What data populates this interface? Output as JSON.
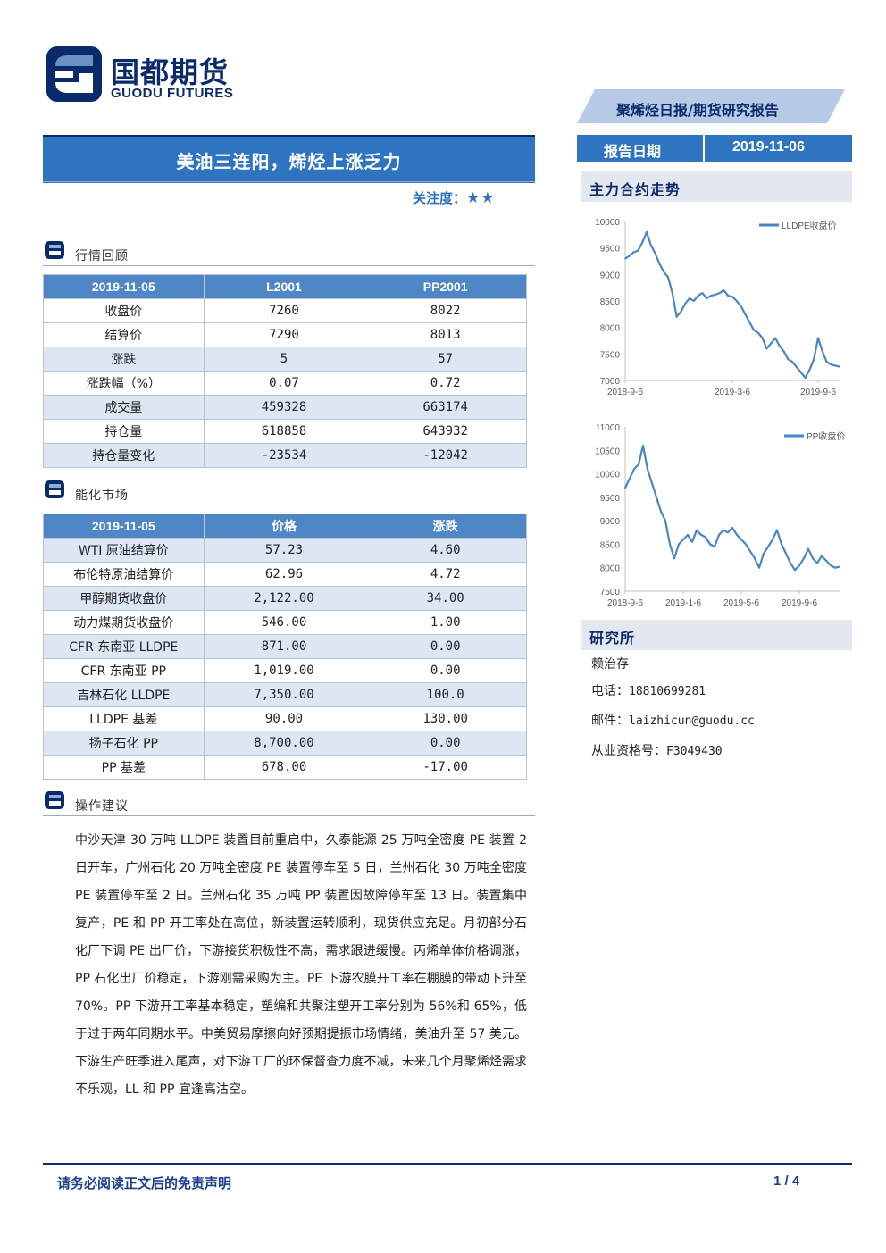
{
  "brand": {
    "name_cn": "国都期货",
    "name_en": "GUODU FUTURES"
  },
  "report_type": "聚烯烃日报/期货研究报告",
  "title": "美油三连阳，烯烃上涨乏力",
  "attention": {
    "label": "关注度：",
    "stars": "★★"
  },
  "sections": {
    "market_review": "行情回顾",
    "energy_market": "能化市场",
    "operation": "操作建议"
  },
  "market_table": {
    "headers": [
      "2019-11-05",
      "L2001",
      "PP2001"
    ],
    "rows": [
      [
        "收盘价",
        "7260",
        "8022"
      ],
      [
        "结算价",
        "7290",
        "8013"
      ],
      [
        "涨跌",
        "5",
        "57"
      ],
      [
        "涨跌幅（%）",
        "0.07",
        "0.72"
      ],
      [
        "成交量",
        "459328",
        "663174"
      ],
      [
        "持仓量",
        "618858",
        "643932"
      ],
      [
        "持仓量变化",
        "-23534",
        "-12042"
      ]
    ]
  },
  "energy_table": {
    "headers": [
      "2019-11-05",
      "价格",
      "涨跌"
    ],
    "rows": [
      [
        "WTI 原油结算价",
        "57.23",
        "4.60"
      ],
      [
        "布伦特原油结算价",
        "62.96",
        "4.72"
      ],
      [
        "甲醇期货收盘价",
        "2,122.00",
        "34.00"
      ],
      [
        "动力煤期货收盘价",
        "546.00",
        "1.00"
      ],
      [
        "CFR 东南亚 LLDPE",
        "871.00",
        "0.00"
      ],
      [
        "CFR 东南亚 PP",
        "1,019.00",
        "0.00"
      ],
      [
        "吉林石化 LLDPE",
        "7,350.00",
        "100.0"
      ],
      [
        "LLDPE 基差",
        "90.00",
        "130.00"
      ],
      [
        "扬子石化 PP",
        "8,700.00",
        "0.00"
      ],
      [
        "PP 基差",
        "678.00",
        "-17.00"
      ]
    ]
  },
  "advice": "中沙天津 30 万吨 LLDPE 装置目前重启中，久泰能源 25 万吨全密度 PE 装置 2 日开车，广州石化 20 万吨全密度 PE 装置停车至 5 日，兰州石化 30 万吨全密度 PE 装置停车至 2 日。兰州石化 35 万吨 PP 装置因故障停车至 13 日。装置集中复产，PE 和 PP 开工率处在高位，新装置运转顺利，现货供应充足。月初部分石化厂下调 PE 出厂价，下游接货积极性不高，需求跟进缓慢。丙烯单体价格调涨，PP 石化出厂价稳定，下游刚需采购为主。PE 下游农膜开工率在棚膜的带动下升至 70%。PP 下游开工率基本稳定，塑编和共聚注塑开工率分别为 56%和 65%，低于过于两年同期水平。中美贸易摩擦向好预期提振市场情绪，美油升至 57 美元。下游生产旺季进入尾声，对下游工厂的环保督查力度不减，未来几个月聚烯烃需求不乐观，LL 和 PP 宜逢高沽空。",
  "report_date": {
    "label": "报告日期",
    "value": "2019-11-06"
  },
  "main_contract_title": "主力合约走势",
  "chart_data": [
    {
      "type": "line",
      "series": [
        {
          "name": "LLDPE收盘价",
          "color": "#4a86c5",
          "values": [
            9300,
            9350,
            9420,
            9450,
            9600,
            9800,
            9550,
            9400,
            9200,
            9050,
            8950,
            8650,
            8200,
            8300,
            8450,
            8550,
            8500,
            8600,
            8650,
            8550,
            8600,
            8620,
            8650,
            8700,
            8600,
            8580,
            8500,
            8400,
            8250,
            8100,
            7950,
            7900,
            7800,
            7600,
            7700,
            7800,
            7650,
            7550,
            7400,
            7350,
            7250,
            7150,
            7050,
            7200,
            7400,
            7800,
            7550,
            7350,
            7300,
            7280,
            7260
          ]
        }
      ],
      "x_ticks": [
        "2018-9-6",
        "2019-3-6",
        "2019-9-6"
      ],
      "x_tick_index": [
        0,
        25,
        45
      ],
      "y_ticks": [
        7000,
        7500,
        8000,
        8500,
        9000,
        9500,
        10000
      ],
      "ylim": [
        7000,
        10000
      ],
      "legend": "top-right"
    },
    {
      "type": "line",
      "series": [
        {
          "name": "PP收盘价",
          "color": "#4a86c5",
          "values": [
            9700,
            9900,
            10100,
            10200,
            10600,
            10100,
            9800,
            9500,
            9200,
            9000,
            8500,
            8200,
            8500,
            8600,
            8700,
            8550,
            8800,
            8700,
            8650,
            8500,
            8450,
            8700,
            8800,
            8750,
            8850,
            8700,
            8600,
            8500,
            8350,
            8200,
            8000,
            8300,
            8450,
            8600,
            8800,
            8500,
            8300,
            8100,
            7950,
            8050,
            8200,
            8400,
            8200,
            8100,
            8250,
            8150,
            8050,
            8000,
            8022
          ]
        }
      ],
      "x_ticks": [
        "2018-9-6",
        "2019-1-6",
        "2019-5-6",
        "2019-9-6"
      ],
      "x_tick_index": [
        0,
        13,
        26,
        39
      ],
      "y_ticks": [
        7500,
        8000,
        8500,
        9000,
        9500,
        10000,
        10500,
        11000
      ],
      "ylim": [
        7500,
        11000
      ],
      "legend": "top-right"
    }
  ],
  "research": {
    "title": "研究所",
    "name": "赖治存",
    "phone_label": "电话：",
    "phone": "18810699281",
    "email_label": "邮件：",
    "email": "laizhicun@guodu.cc",
    "cert_label": "从业资格号：",
    "cert": "F3049430"
  },
  "footer": {
    "disclaimer": "请务必阅读正文后的免责声明",
    "page": "1 / 4"
  },
  "colors": {
    "brand_navy": "#0b2a6a",
    "accent_blue": "#2e74c0",
    "table_head": "#4f86c6",
    "table_alt": "#dde6f3",
    "line": "#4a86c5"
  }
}
